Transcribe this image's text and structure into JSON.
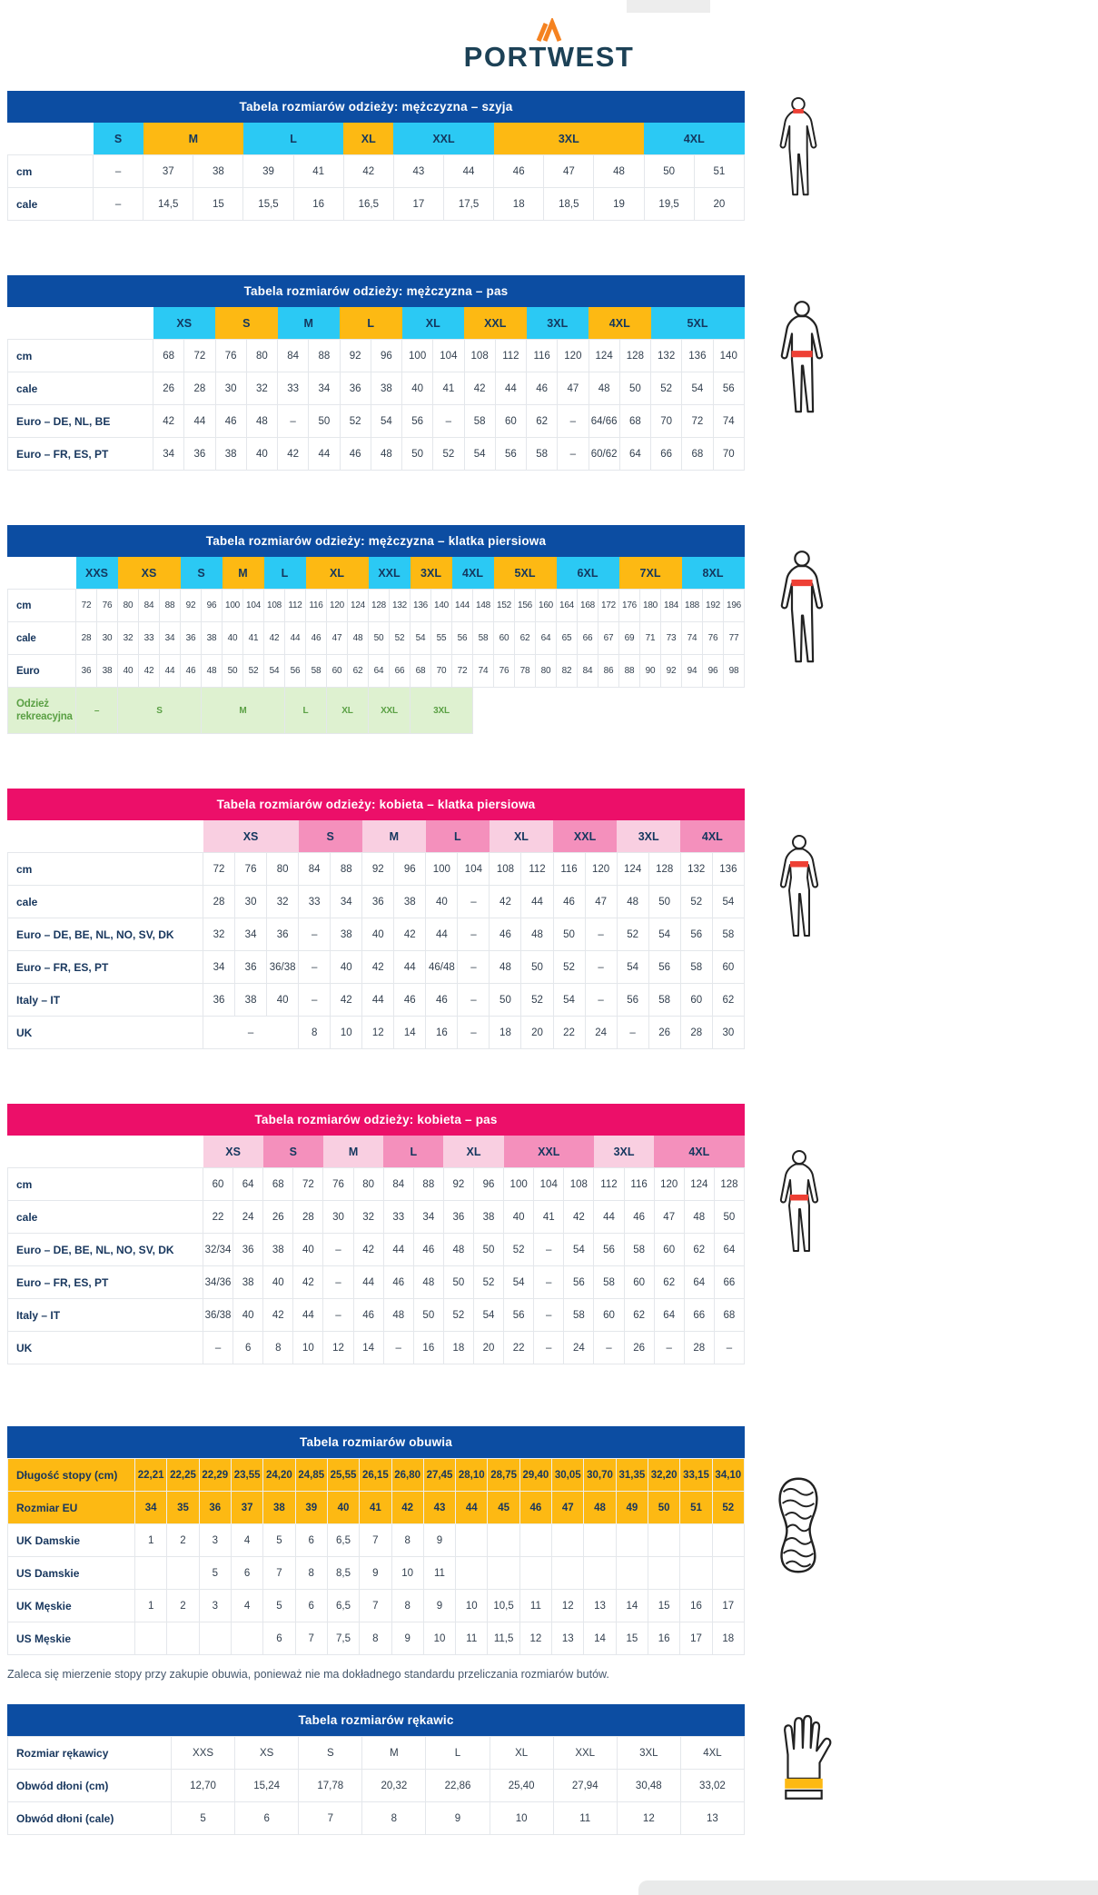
{
  "logo": {
    "brand": "PORTWEST"
  },
  "note": "Zaleca się mierzenie stopy przy zakupie obuwia, ponieważ nie ma dokładnego standardu przeliczania rozmiarów butów.",
  "colors": {
    "title_blue": "#0c4da2",
    "title_pink": "#ec0f69",
    "cyan": "#2bc9f4",
    "orange": "#fdb913",
    "pink_light": "#f9cfe1",
    "pink_medium": "#f490bc",
    "green_bg": "#def1d0",
    "green_text": "#5aa044",
    "accent_red": "#ee4035",
    "logo_orange": "#f58220",
    "logo_navy": "#1c4156"
  },
  "tables": [
    {
      "title": "Tabela rozmiarów odzieży: mężczyzna – szyja",
      "theme": "blue",
      "cols": 13,
      "label_width": 94,
      "header": [
        {
          "label": "S",
          "span": 1,
          "c": "cyan"
        },
        {
          "label": "M",
          "span": 2,
          "c": "orange"
        },
        {
          "label": "L",
          "span": 2,
          "c": "cyan"
        },
        {
          "label": "XL",
          "span": 1,
          "c": "orange"
        },
        {
          "label": "XXL",
          "span": 2,
          "c": "cyan"
        },
        {
          "label": "3XL",
          "span": 3,
          "c": "orange"
        },
        {
          "label": "4XL",
          "span": 2,
          "c": "cyan"
        }
      ],
      "rows": [
        {
          "label": "cm",
          "cells": [
            "–",
            "37",
            "38",
            "39",
            "41",
            "42",
            "43",
            "44",
            "46",
            "47",
            "48",
            "50",
            "51"
          ]
        },
        {
          "label": "cale",
          "cells": [
            "–",
            "14,5",
            "15",
            "15,5",
            "16",
            "16,5",
            "17",
            "17,5",
            "18",
            "18,5",
            "19",
            "19,5",
            "20"
          ]
        }
      ]
    },
    {
      "title": "Tabela rozmiarów odzieży: mężczyzna – pas",
      "theme": "blue",
      "cols": 19,
      "label_width": 160,
      "header": [
        {
          "label": "XS",
          "span": 2,
          "c": "cyan"
        },
        {
          "label": "S",
          "span": 2,
          "c": "orange"
        },
        {
          "label": "M",
          "span": 2,
          "c": "cyan"
        },
        {
          "label": "L",
          "span": 2,
          "c": "orange"
        },
        {
          "label": "XL",
          "span": 2,
          "c": "cyan"
        },
        {
          "label": "XXL",
          "span": 2,
          "c": "orange"
        },
        {
          "label": "3XL",
          "span": 2,
          "c": "cyan"
        },
        {
          "label": "4XL",
          "span": 2,
          "c": "orange"
        },
        {
          "label": "5XL",
          "span": 3,
          "c": "cyan"
        }
      ],
      "rows": [
        {
          "label": "cm",
          "cells": [
            "68",
            "72",
            "76",
            "80",
            "84",
            "88",
            "92",
            "96",
            "100",
            "104",
            "108",
            "112",
            "116",
            "120",
            "124",
            "128",
            "132",
            "136",
            "140"
          ]
        },
        {
          "label": "cale",
          "cells": [
            "26",
            "28",
            "30",
            "32",
            "33",
            "34",
            "36",
            "38",
            "40",
            "41",
            "42",
            "44",
            "46",
            "47",
            "48",
            "50",
            "52",
            "54",
            "56"
          ]
        },
        {
          "label": "Euro – DE, NL, BE",
          "cells": [
            "42",
            "44",
            "46",
            "48",
            "–",
            "50",
            "52",
            "54",
            "56",
            "–",
            "58",
            "60",
            "62",
            "–",
            "64/66",
            "68",
            "70",
            "72",
            "74"
          ]
        },
        {
          "label": "Euro – FR, ES, PT",
          "cells": [
            "34",
            "36",
            "38",
            "40",
            "42",
            "44",
            "46",
            "48",
            "50",
            "52",
            "54",
            "56",
            "58",
            "–",
            "60/62",
            "64",
            "66",
            "68",
            "70"
          ]
        }
      ]
    },
    {
      "title": "Tabela rozmiarów odzieży: mężczyzna – klatka piersiowa",
      "theme": "blue",
      "cols": 32,
      "label_width": 75,
      "compact": true,
      "header": [
        {
          "label": "XXS",
          "span": 2,
          "c": "cyan"
        },
        {
          "label": "XS",
          "span": 3,
          "c": "orange"
        },
        {
          "label": "S",
          "span": 2,
          "c": "cyan"
        },
        {
          "label": "M",
          "span": 2,
          "c": "orange"
        },
        {
          "label": "L",
          "span": 2,
          "c": "cyan"
        },
        {
          "label": "XL",
          "span": 3,
          "c": "orange"
        },
        {
          "label": "XXL",
          "span": 2,
          "c": "cyan"
        },
        {
          "label": "3XL",
          "span": 2,
          "c": "orange"
        },
        {
          "label": "4XL",
          "span": 2,
          "c": "cyan"
        },
        {
          "label": "5XL",
          "span": 3,
          "c": "orange"
        },
        {
          "label": "6XL",
          "span": 3,
          "c": "cyan"
        },
        {
          "label": "7XL",
          "span": 3,
          "c": "orange"
        },
        {
          "label": "8XL",
          "span": 3,
          "c": "cyan"
        }
      ],
      "rows": [
        {
          "label": "cm",
          "cells": [
            "72",
            "76",
            "80",
            "84",
            "88",
            "92",
            "96",
            "100",
            "104",
            "108",
            "112",
            "116",
            "120",
            "124",
            "128",
            "132",
            "136",
            "140",
            "144",
            "148",
            "152",
            "156",
            "160",
            "164",
            "168",
            "172",
            "176",
            "180",
            "184",
            "188",
            "192",
            "196"
          ]
        },
        {
          "label": "cale",
          "cells": [
            "28",
            "30",
            "32",
            "33",
            "34",
            "36",
            "38",
            "40",
            "41",
            "42",
            "44",
            "46",
            "47",
            "48",
            "50",
            "52",
            "54",
            "55",
            "56",
            "58",
            "60",
            "62",
            "64",
            "65",
            "66",
            "67",
            "69",
            "71",
            "73",
            "74",
            "76",
            "77"
          ]
        },
        {
          "label": "Euro",
          "cells": [
            "36",
            "38",
            "40",
            "42",
            "44",
            "46",
            "48",
            "50",
            "52",
            "54",
            "56",
            "58",
            "60",
            "62",
            "64",
            "66",
            "68",
            "70",
            "72",
            "74",
            "76",
            "78",
            "80",
            "82",
            "84",
            "86",
            "88",
            "90",
            "92",
            "94",
            "96",
            "98"
          ]
        }
      ],
      "extra_row": {
        "label": "Odzież rekreacyjna",
        "cells": [
          {
            "t": "–",
            "s": 2
          },
          {
            "t": "S",
            "s": 4
          },
          {
            "t": "M",
            "s": 4
          },
          {
            "t": "L",
            "s": 2
          },
          {
            "t": "XL",
            "s": 2
          },
          {
            "t": "XXL",
            "s": 2
          },
          {
            "t": "3XL",
            "s": 3
          },
          {
            "t": "",
            "s": 13,
            "blank": true
          }
        ]
      }
    },
    {
      "title": "Tabela rozmiarów odzieży: kobieta – klatka piersiowa",
      "theme": "pink",
      "cols": 17,
      "label_width": 215,
      "header": [
        {
          "label": "XS",
          "span": 3,
          "c": "light"
        },
        {
          "label": "S",
          "span": 2,
          "c": "medium"
        },
        {
          "label": "M",
          "span": 2,
          "c": "light"
        },
        {
          "label": "L",
          "span": 2,
          "c": "medium"
        },
        {
          "label": "XL",
          "span": 2,
          "c": "light"
        },
        {
          "label": "XXL",
          "span": 2,
          "c": "medium"
        },
        {
          "label": "3XL",
          "span": 2,
          "c": "light"
        },
        {
          "label": "4XL",
          "span": 2,
          "c": "medium"
        }
      ],
      "rows": [
        {
          "label": "cm",
          "cells": [
            "72",
            "76",
            "80",
            "84",
            "88",
            "92",
            "96",
            "100",
            "104",
            "108",
            "112",
            "116",
            "120",
            "124",
            "128",
            "132",
            "136"
          ]
        },
        {
          "label": "cale",
          "cells": [
            "28",
            "30",
            "32",
            "33",
            "34",
            "36",
            "38",
            "40",
            "–",
            "42",
            "44",
            "46",
            "47",
            "48",
            "50",
            "52",
            "54"
          ]
        },
        {
          "label": "Euro – DE, BE, NL, NO, SV, DK",
          "cells": [
            "32",
            "34",
            "36",
            "–",
            "38",
            "40",
            "42",
            "44",
            "–",
            "46",
            "48",
            "50",
            "–",
            "52",
            "54",
            "56",
            "58"
          ]
        },
        {
          "label": "Euro – FR, ES, PT",
          "cells": [
            "34",
            "36",
            "36/38",
            "–",
            "40",
            "42",
            "44",
            "46/48",
            "–",
            "48",
            "50",
            "52",
            "–",
            "54",
            "56",
            "58",
            "60"
          ]
        },
        {
          "label": "Italy – IT",
          "cells": [
            "36",
            "38",
            "40",
            "–",
            "42",
            "44",
            "46",
            "46",
            "–",
            "50",
            "52",
            "54",
            "–",
            "56",
            "58",
            "60",
            "62"
          ]
        },
        {
          "label": "UK",
          "cells": [
            {
              "t": "–",
              "s": 3
            },
            "8",
            "10",
            "12",
            "14",
            "16",
            "–",
            "18",
            "20",
            "22",
            "24",
            "–",
            "26",
            "28",
            "30"
          ]
        }
      ]
    },
    {
      "title": "Tabela rozmiarów odzieży: kobieta – pas",
      "theme": "pink",
      "cols": 18,
      "label_width": 215,
      "header": [
        {
          "label": "XS",
          "span": 2,
          "c": "light"
        },
        {
          "label": "S",
          "span": 2,
          "c": "medium"
        },
        {
          "label": "M",
          "span": 2,
          "c": "light"
        },
        {
          "label": "L",
          "span": 2,
          "c": "medium"
        },
        {
          "label": "XL",
          "span": 2,
          "c": "light"
        },
        {
          "label": "XXL",
          "span": 3,
          "c": "medium"
        },
        {
          "label": "3XL",
          "span": 2,
          "c": "light"
        },
        {
          "label": "4XL",
          "span": 3,
          "c": "medium"
        }
      ],
      "rows": [
        {
          "label": "cm",
          "cells": [
            "60",
            "64",
            "68",
            "72",
            "76",
            "80",
            "84",
            "88",
            "92",
            "96",
            "100",
            "104",
            "108",
            "112",
            "116",
            "120",
            "124",
            "128"
          ]
        },
        {
          "label": "cale",
          "cells": [
            "22",
            "24",
            "26",
            "28",
            "30",
            "32",
            "33",
            "34",
            "36",
            "38",
            "40",
            "41",
            "42",
            "44",
            "46",
            "47",
            "48",
            "50"
          ]
        },
        {
          "label": "Euro – DE, BE, NL, NO, SV, DK",
          "cells": [
            "32/34",
            "36",
            "38",
            "40",
            "–",
            "42",
            "44",
            "46",
            "48",
            "50",
            "52",
            "–",
            "54",
            "56",
            "58",
            "60",
            "62",
            "64"
          ]
        },
        {
          "label": "Euro – FR, ES, PT",
          "cells": [
            "34/36",
            "38",
            "40",
            "42",
            "–",
            "44",
            "46",
            "48",
            "50",
            "52",
            "54",
            "–",
            "56",
            "58",
            "60",
            "62",
            "64",
            "66"
          ]
        },
        {
          "label": "Italy – IT",
          "cells": [
            "36/38",
            "40",
            "42",
            "44",
            "–",
            "46",
            "48",
            "50",
            "52",
            "54",
            "56",
            "–",
            "58",
            "60",
            "62",
            "64",
            "66",
            "68"
          ]
        },
        {
          "label": "UK",
          "cells": [
            "–",
            "6",
            "8",
            "10",
            "12",
            "14",
            "–",
            "16",
            "18",
            "20",
            "22",
            "–",
            "24",
            "–",
            "26",
            "–",
            "28",
            "–"
          ]
        }
      ]
    },
    {
      "title": "Tabela rozmiarów obuwia",
      "theme": "blue",
      "cols": 19,
      "label_width": 140,
      "rows": [
        {
          "label": "Długość stopy (cm)",
          "style": "amber",
          "cells": [
            "22,21",
            "22,25",
            "22,29",
            "23,55",
            "24,20",
            "24,85",
            "25,55",
            "26,15",
            "26,80",
            "27,45",
            "28,10",
            "28,75",
            "29,40",
            "30,05",
            "30,70",
            "31,35",
            "32,20",
            "33,15",
            "34,10"
          ]
        },
        {
          "label": "Rozmiar EU",
          "style": "amber",
          "cells": [
            "34",
            "35",
            "36",
            "37",
            "38",
            "39",
            "40",
            "41",
            "42",
            "43",
            "44",
            "45",
            "46",
            "47",
            "48",
            "49",
            "50",
            "51",
            "52"
          ]
        },
        {
          "label": "UK Damskie",
          "cells": [
            "1",
            "2",
            "3",
            "4",
            "5",
            "6",
            "6,5",
            "7",
            "8",
            "9",
            "",
            "",
            "",
            "",
            "",
            "",
            "",
            "",
            ""
          ]
        },
        {
          "label": "US Damskie",
          "cells": [
            "",
            "",
            "5",
            "6",
            "7",
            "8",
            "8,5",
            "9",
            "10",
            "11",
            "",
            "",
            "",
            "",
            "",
            "",
            "",
            "",
            ""
          ]
        },
        {
          "label": "UK Męskie",
          "cells": [
            "1",
            "2",
            "3",
            "4",
            "5",
            "6",
            "6,5",
            "7",
            "8",
            "9",
            "10",
            "10,5",
            "11",
            "12",
            "13",
            "14",
            "15",
            "16",
            "17"
          ]
        },
        {
          "label": "US Męskie",
          "cells": [
            "",
            "",
            "",
            "",
            "6",
            "7",
            "7,5",
            "8",
            "9",
            "10",
            "11",
            "11,5",
            "12",
            "13",
            "14",
            "15",
            "16",
            "17",
            "18"
          ]
        }
      ]
    },
    {
      "title": "Tabela rozmiarów rękawic",
      "theme": "blue",
      "cols": 9,
      "label_width": 180,
      "rows": [
        {
          "label": "Rozmiar rękawicy",
          "cells": [
            "XXS",
            "XS",
            "S",
            "M",
            "L",
            "XL",
            "XXL",
            "3XL",
            "4XL"
          ]
        },
        {
          "label": "Obwód dłoni (cm)",
          "cells": [
            "12,70",
            "15,24",
            "17,78",
            "20,32",
            "22,86",
            "25,40",
            "27,94",
            "30,48",
            "33,02"
          ]
        },
        {
          "label": "Obwód dłoni (cale)",
          "cells": [
            "5",
            "6",
            "7",
            "8",
            "9",
            "10",
            "11",
            "12",
            "13"
          ]
        }
      ]
    }
  ]
}
